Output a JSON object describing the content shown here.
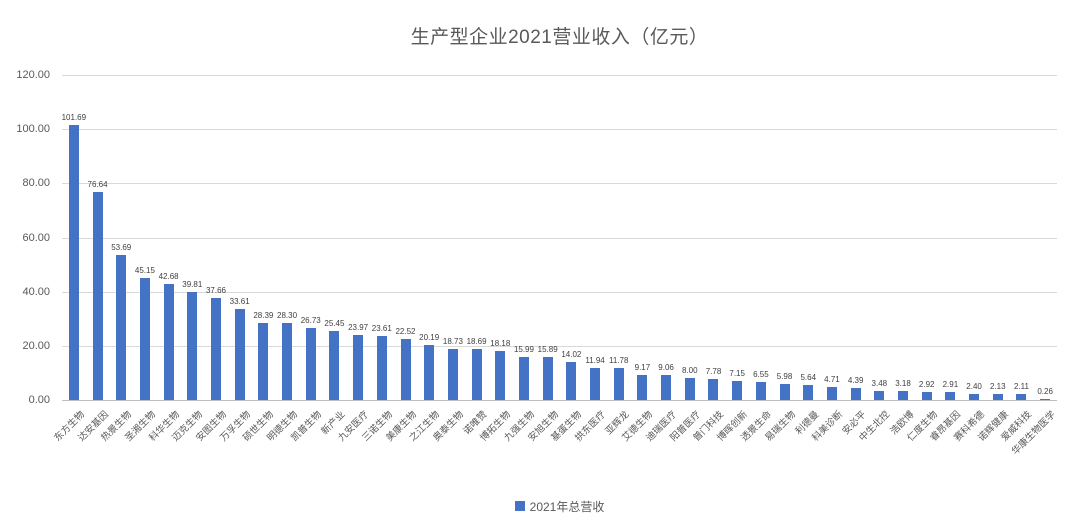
{
  "title": "生产型企业2021营业收入（亿元）",
  "legend": {
    "label": "2021年总营收",
    "swatch_color": "#4472C4"
  },
  "colors": {
    "bar": "#4472C4",
    "gridline": "#D9D9D9",
    "axis_text": "#595959",
    "value_label": "#404040",
    "title_text": "#595959",
    "background": "#FFFFFF"
  },
  "y_axis": {
    "tick_labels": [
      "120.00",
      "100.00",
      "80.00",
      "60.00",
      "40.00",
      "20.00",
      "0.00"
    ],
    "min": 0,
    "max": 120,
    "step": 20
  },
  "chart_data": {
    "type": "bar",
    "title": "生产型企业2021营业收入（亿元）",
    "series_name": "2021年总营收",
    "xlabel": "",
    "ylabel": "",
    "ylim": [
      0,
      120
    ],
    "grid": true,
    "legend_position": "bottom",
    "bar_color": "#4472C4",
    "value_label_decimals": 2,
    "categories": [
      "东方生物",
      "达安基因",
      "热景生物",
      "圣湘生物",
      "科华生物",
      "迈克生物",
      "安图生物",
      "万孚生物",
      "硕世生物",
      "明德生物",
      "凯普生物",
      "新产业",
      "九安医疗",
      "三诺生物",
      "美康生物",
      "之江生物",
      "奥泰生物",
      "诺唯赞",
      "博拓生物",
      "九强生物",
      "安旭生物",
      "基蛋生物",
      "拱东医疗",
      "亚辉龙",
      "艾德生物",
      "迪瑞医疗",
      "阳普医疗",
      "普门科技",
      "博晖创新",
      "透景生命",
      "易瑞生物",
      "利德曼",
      "科美诊断",
      "安必平",
      "中生北控",
      "浩欧博",
      "仁度生物",
      "睿昂基因",
      "赛科希德",
      "诺辉健康",
      "爱威科技",
      "华康生物医学"
    ],
    "values": [
      101.69,
      76.64,
      53.69,
      45.15,
      42.68,
      39.81,
      37.66,
      33.61,
      28.39,
      28.3,
      26.73,
      25.45,
      23.97,
      23.61,
      22.52,
      20.19,
      18.73,
      18.69,
      18.18,
      15.99,
      15.89,
      14.02,
      11.94,
      11.78,
      9.17,
      9.06,
      8.0,
      7.78,
      7.15,
      6.55,
      5.98,
      5.64,
      4.71,
      4.39,
      3.48,
      3.18,
      2.92,
      2.91,
      2.4,
      2.13,
      2.11,
      0.26
    ]
  }
}
